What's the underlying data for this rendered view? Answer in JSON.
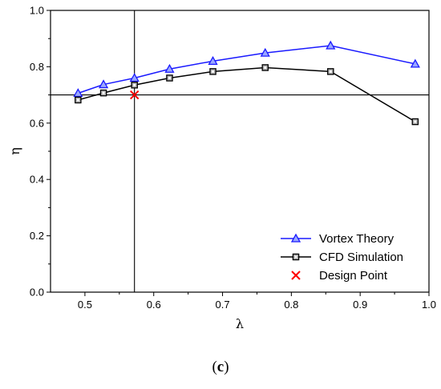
{
  "chart_data": {
    "type": "line",
    "xlabel": "λ",
    "ylabel": "η",
    "xlim": [
      0.45,
      1.0
    ],
    "ylim": [
      0.0,
      1.0
    ],
    "xticks": [
      "0.5",
      "0.6",
      "0.7",
      "0.8",
      "0.9",
      "1.0"
    ],
    "yticks": [
      "0.0",
      "0.2",
      "0.4",
      "0.6",
      "0.8",
      "1.0"
    ],
    "xtick_values": [
      0.5,
      0.6,
      0.7,
      0.8,
      0.9,
      1.0
    ],
    "ytick_values": [
      0.0,
      0.2,
      0.4,
      0.6,
      0.8,
      1.0
    ],
    "series": [
      {
        "name": "Vortex Theory",
        "color": "#1a1aff",
        "marker": "triangle",
        "x": [
          0.49,
          0.527,
          0.572,
          0.623,
          0.686,
          0.762,
          0.857,
          0.98
        ],
        "y": [
          0.706,
          0.737,
          0.76,
          0.792,
          0.82,
          0.849,
          0.875,
          0.81
        ]
      },
      {
        "name": "CFD Simulation",
        "color": "#000000",
        "marker": "square",
        "x": [
          0.49,
          0.527,
          0.572,
          0.623,
          0.686,
          0.762,
          0.857,
          0.98
        ],
        "y": [
          0.682,
          0.707,
          0.735,
          0.76,
          0.783,
          0.797,
          0.783,
          0.605
        ]
      }
    ],
    "points": [
      {
        "name": "Design Point",
        "color": "#ff0000",
        "marker": "x",
        "x": 0.572,
        "y": 0.7
      }
    ],
    "reference_lines": {
      "x": 0.572,
      "y": 0.7
    },
    "legend": {
      "placement": "bottom-right",
      "entries": [
        "Vortex Theory",
        "CFD Simulation",
        "Design Point"
      ]
    },
    "grid": false
  },
  "caption": {
    "open": "(",
    "letter": "c",
    "close": ")"
  }
}
